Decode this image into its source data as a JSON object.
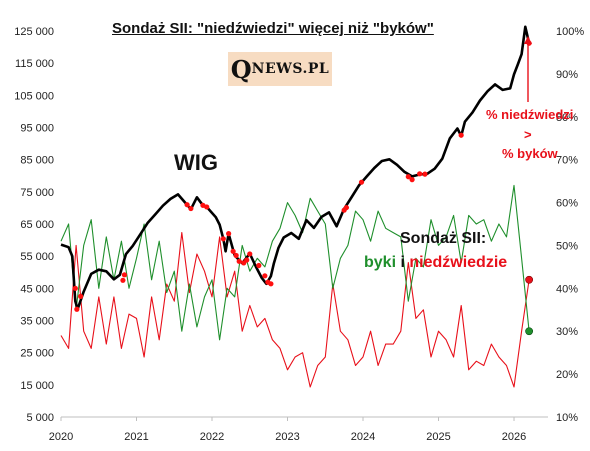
{
  "chart_data": {
    "type": "line",
    "title": "Sondaż SII: \"niedźwiedzi\" więcej niż \"byków\"",
    "logo": {
      "q": "Q",
      "rest": "NEWS.PL"
    },
    "labels": {
      "wig": "WIG",
      "annotation_line1": "% niedźwiedzi",
      "annotation_line2": ">",
      "annotation_line3": "% byków",
      "survey_title": "Sondaż SII:",
      "survey_bulls": "byki",
      "survey_and": "i",
      "survey_bears": "niedźwiedzie"
    },
    "x_ticks": [
      "2020",
      "2021",
      "2022",
      "2023",
      "2024",
      "2025",
      "2026"
    ],
    "xlim": [
      2020.0,
      2026.45
    ],
    "y_left": {
      "ticks": [
        "125 000",
        "115 000",
        "105 000",
        "95 000",
        "85 000",
        "75 000",
        "65 000",
        "55 000",
        "45 000",
        "35 000",
        "25 000",
        "15 000",
        "5 000"
      ],
      "range": [
        5000,
        125000
      ]
    },
    "y_right": {
      "ticks": [
        "100%",
        "90%",
        "80%",
        "70%",
        "60%",
        "50%",
        "40%",
        "30%",
        "20%",
        "10%"
      ],
      "range": [
        10,
        100
      ]
    },
    "colors": {
      "wig": "#000000",
      "bulls": "#1f8f2c",
      "bears": "#e8101a",
      "marker": "#ff1010"
    },
    "wig_series": {
      "name": "WIG",
      "x": [
        2020.0,
        2020.1,
        2020.15,
        2020.19,
        2020.22,
        2020.3,
        2020.4,
        2020.5,
        2020.6,
        2020.7,
        2020.78,
        2020.86,
        2020.95,
        2021.05,
        2021.15,
        2021.25,
        2021.35,
        2021.45,
        2021.55,
        2021.65,
        2021.72,
        2021.8,
        2021.88,
        2021.95,
        2022.05,
        2022.1,
        2022.15,
        2022.18,
        2022.22,
        2022.3,
        2022.4,
        2022.5,
        2022.58,
        2022.66,
        2022.72,
        2022.78,
        2022.82,
        2022.88,
        2022.95,
        2023.05,
        2023.15,
        2023.25,
        2023.35,
        2023.45,
        2023.55,
        2023.65,
        2023.75,
        2023.85,
        2023.95,
        2024.05,
        2024.15,
        2024.25,
        2024.35,
        2024.45,
        2024.55,
        2024.65,
        2024.75,
        2024.85,
        2024.95,
        2025.05,
        2025.15,
        2025.25,
        2025.3,
        2025.35,
        2025.45,
        2025.55,
        2025.65,
        2025.75,
        2025.85,
        2025.95,
        2026.0,
        2026.05,
        2026.1,
        2026.15,
        2026.2
      ],
      "values": [
        58600,
        57800,
        55000,
        41000,
        38500,
        44000,
        49500,
        50800,
        50300,
        47800,
        49200,
        55600,
        58200,
        61800,
        65400,
        68000,
        70700,
        72800,
        74200,
        71500,
        69600,
        73300,
        70800,
        69800,
        67100,
        64800,
        60400,
        56500,
        62000,
        55200,
        52800,
        55800,
        51800,
        48200,
        46400,
        48800,
        52800,
        57600,
        60800,
        62200,
        60400,
        66200,
        63800,
        67200,
        68600,
        64300,
        69700,
        73400,
        77100,
        79800,
        82400,
        84600,
        85100,
        83400,
        81200,
        79800,
        80400,
        80600,
        82200,
        85300,
        91600,
        94700,
        92400,
        96800,
        99700,
        103400,
        106300,
        108400,
        106700,
        107200,
        111500,
        114600,
        117800,
        126300,
        121200
      ]
    },
    "red_dot_series": {
      "name": "% niedźwiedzi > % byków",
      "x": [
        2020.19,
        2020.21,
        2020.26,
        2020.82,
        2020.84,
        2021.67,
        2021.72,
        2021.88,
        2021.93,
        2022.15,
        2022.22,
        2022.28,
        2022.32,
        2022.36,
        2022.42,
        2022.46,
        2022.5,
        2022.62,
        2022.7,
        2022.74,
        2022.78,
        2023.75,
        2023.78,
        2023.98,
        2024.6,
        2024.65,
        2024.75,
        2024.82,
        2025.3,
        2026.2
      ],
      "values": [
        45000,
        38500,
        42500,
        47500,
        49200,
        71000,
        69800,
        70800,
        70300,
        60400,
        62000,
        56500,
        55200,
        53400,
        52900,
        53800,
        55700,
        52100,
        48900,
        46900,
        46400,
        69300,
        70100,
        78000,
        79700,
        78800,
        80600,
        80500,
        92600,
        121200
      ]
    },
    "bulls_series": {
      "name": "byki",
      "x": [
        2020.0,
        2020.1,
        2020.2,
        2020.3,
        2020.4,
        2020.5,
        2020.6,
        2020.7,
        2020.8,
        2020.9,
        2021.0,
        2021.1,
        2021.2,
        2021.3,
        2021.4,
        2021.5,
        2021.6,
        2021.7,
        2021.8,
        2021.9,
        2022.0,
        2022.1,
        2022.2,
        2022.3,
        2022.4,
        2022.5,
        2022.6,
        2022.7,
        2022.8,
        2022.9,
        2023.0,
        2023.1,
        2023.2,
        2023.3,
        2023.4,
        2023.5,
        2023.6,
        2023.7,
        2023.8,
        2023.9,
        2024.0,
        2024.1,
        2024.2,
        2024.3,
        2024.4,
        2024.5,
        2024.6,
        2024.7,
        2024.8,
        2024.9,
        2025.0,
        2025.1,
        2025.2,
        2025.3,
        2025.4,
        2025.5,
        2025.6,
        2025.7,
        2025.8,
        2025.9,
        2026.0,
        2026.1,
        2026.2
      ],
      "values": [
        51,
        55,
        35,
        50,
        56,
        40,
        52,
        42,
        51,
        40,
        47,
        55,
        42,
        51,
        39,
        44,
        30,
        41,
        31,
        38,
        42,
        28,
        40,
        38,
        50,
        44,
        47,
        45,
        51,
        54,
        60,
        57,
        53,
        61,
        58,
        55,
        40,
        47,
        50,
        58,
        56,
        51,
        58,
        54,
        53,
        52,
        37,
        47,
        45,
        56,
        50,
        52,
        57,
        46,
        57,
        55,
        56,
        51,
        55,
        52,
        64,
        47,
        30
      ]
    },
    "bears_series": {
      "name": "niedźwiedzie",
      "x": [
        2020.0,
        2020.1,
        2020.2,
        2020.3,
        2020.4,
        2020.5,
        2020.6,
        2020.7,
        2020.8,
        2020.9,
        2021.0,
        2021.1,
        2021.2,
        2021.3,
        2021.4,
        2021.5,
        2021.6,
        2021.7,
        2021.8,
        2021.9,
        2022.0,
        2022.1,
        2022.2,
        2022.3,
        2022.4,
        2022.5,
        2022.6,
        2022.7,
        2022.8,
        2022.9,
        2023.0,
        2023.1,
        2023.2,
        2023.3,
        2023.4,
        2023.5,
        2023.6,
        2023.7,
        2023.8,
        2023.9,
        2024.0,
        2024.1,
        2024.2,
        2024.3,
        2024.4,
        2024.5,
        2024.6,
        2024.7,
        2024.8,
        2024.9,
        2025.0,
        2025.1,
        2025.2,
        2025.3,
        2025.4,
        2025.5,
        2025.6,
        2025.7,
        2025.8,
        2025.9,
        2026.0,
        2026.1,
        2026.2
      ],
      "values": [
        29,
        26,
        50,
        30,
        26,
        38,
        27,
        38,
        26,
        34,
        33,
        24,
        38,
        28,
        41,
        37,
        53,
        39,
        48,
        44,
        38,
        52,
        38,
        44,
        30,
        36,
        31,
        33,
        28,
        26,
        21,
        24,
        25,
        17,
        22,
        24,
        41,
        30,
        28,
        22,
        24,
        30,
        22,
        27,
        27,
        30,
        46,
        33,
        35,
        24,
        30,
        28,
        24,
        36,
        21,
        23,
        22,
        27,
        24,
        22,
        17,
        30,
        42
      ]
    },
    "bulls_end_value": 30,
    "bears_end_value": 42,
    "grid": false,
    "legend": "none"
  }
}
